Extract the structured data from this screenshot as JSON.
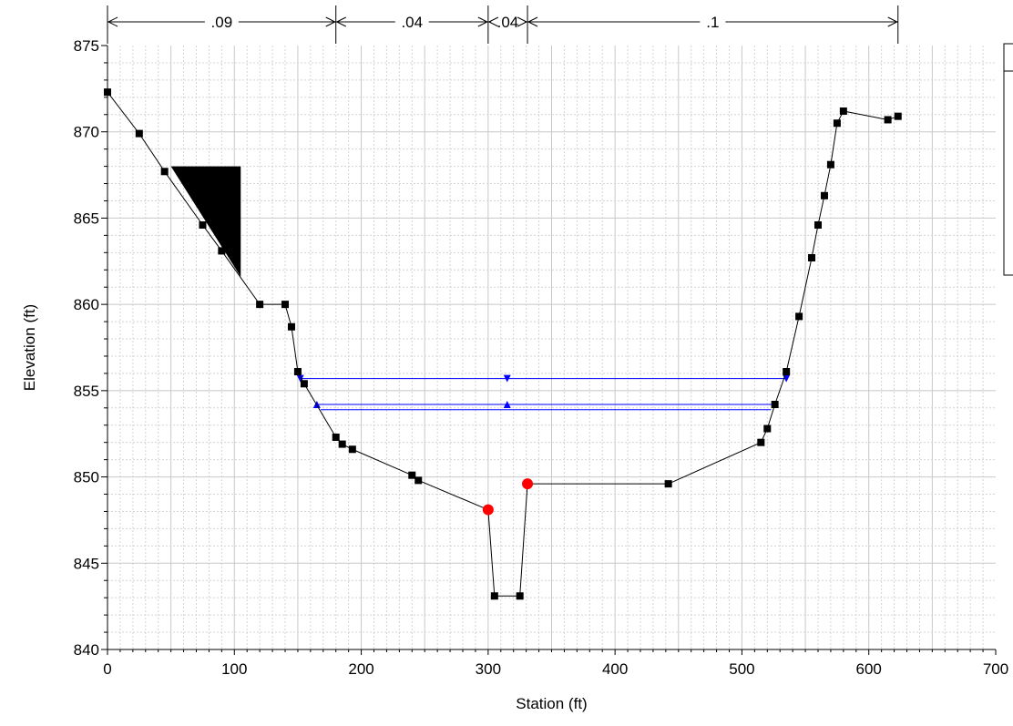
{
  "chart_data": {
    "type": "line",
    "title": "",
    "xlabel": "Station (ft)",
    "ylabel": "Elevation (ft)",
    "xlim": [
      0,
      700
    ],
    "ylim": [
      840,
      875
    ],
    "x_ticks": [
      "0",
      "100",
      "200",
      "300",
      "400",
      "500",
      "600",
      "700"
    ],
    "y_ticks": [
      "840",
      "845",
      "850",
      "855",
      "860",
      "865",
      "870",
      "875"
    ],
    "grid": true,
    "legend": "top-right (partially cropped, no readable entries)",
    "manning_n_zones": [
      {
        "label": ".09",
        "from": 0,
        "to": 180
      },
      {
        "label": ".04",
        "from": 180,
        "to": 300
      },
      {
        "label": ".04",
        "from": 300,
        "to": 331
      },
      {
        "label": ".1",
        "from": 331,
        "to": 623
      }
    ],
    "ground": {
      "x": [
        0,
        25,
        45,
        75,
        90,
        120,
        140,
        145,
        150,
        155,
        180,
        185,
        193,
        240,
        245,
        300,
        305,
        325,
        331,
        442,
        515,
        520,
        526,
        535,
        545,
        555,
        560,
        565,
        570,
        575,
        580,
        615,
        623
      ],
      "y": [
        872.3,
        869.9,
        867.7,
        864.6,
        863.1,
        860.0,
        860.0,
        858.7,
        856.1,
        855.4,
        852.3,
        851.9,
        851.6,
        850.1,
        849.8,
        848.1,
        843.1,
        843.1,
        849.6,
        849.6,
        852.0,
        852.8,
        854.2,
        856.1,
        859.3,
        862.7,
        864.6,
        866.3,
        868.1,
        870.5,
        871.2,
        870.7,
        870.9
      ],
      "color": "#000000"
    },
    "bank_stations": {
      "x": [
        300,
        331
      ],
      "y": [
        848.1,
        849.6
      ],
      "color": "#ff0000"
    },
    "ineffective_block": {
      "x": [
        50,
        105,
        105
      ],
      "y": [
        868.0,
        868.0,
        861.6
      ],
      "color": "#000000"
    },
    "water_surfaces": [
      {
        "x": [
          152,
          535
        ],
        "y": [
          855.7,
          855.7
        ],
        "marker": "down-triangle",
        "marker_x": [
          152,
          315,
          535
        ],
        "color": "#0000ff"
      },
      {
        "x": [
          165,
          526
        ],
        "y": [
          854.2,
          854.2
        ],
        "marker": "up-triangle",
        "marker_x": [
          165,
          315,
          526
        ],
        "color": "#0000ff"
      },
      {
        "x": [
          168,
          523
        ],
        "y": [
          853.9,
          853.9
        ],
        "marker": "none",
        "marker_x": [],
        "color": "#0000ff"
      }
    ]
  }
}
